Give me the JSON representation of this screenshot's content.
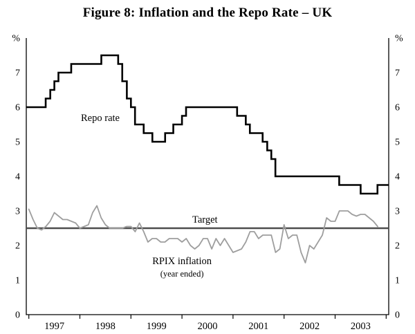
{
  "chart_data": {
    "type": "line",
    "title": "Figure 8: Inflation and the Repo Rate – UK",
    "unit_label_left": "%",
    "unit_label_right": "%",
    "ylim": [
      0,
      8
    ],
    "y_ticks": [
      0,
      1,
      2,
      3,
      4,
      5,
      6,
      7
    ],
    "xlim": [
      1996.95,
      2004.05
    ],
    "x_tick_years": [
      1997,
      1998,
      1999,
      2000,
      2001,
      2002,
      2003
    ],
    "x_boundary_ticks": [
      1997,
      1998,
      1999,
      2000,
      2001,
      2002,
      2003,
      2004
    ],
    "grid": false,
    "legend": "none",
    "series": [
      {
        "name": "Target",
        "type": "hline",
        "value": 2.5,
        "color": "#4d4d4d",
        "width": 2.4
      },
      {
        "name": "RPIX inflation (year ended)",
        "type": "line",
        "color": "#9e9e9e",
        "width": 1.8,
        "x_start": 1997.0,
        "x_step_months": 1,
        "values": [
          3.05,
          2.75,
          2.5,
          2.45,
          2.55,
          2.7,
          2.95,
          2.85,
          2.75,
          2.75,
          2.7,
          2.65,
          2.5,
          2.55,
          2.6,
          2.95,
          3.15,
          2.8,
          2.6,
          2.5,
          2.5,
          2.5,
          2.5,
          2.55,
          2.55,
          2.4,
          2.65,
          2.4,
          2.1,
          2.2,
          2.2,
          2.1,
          2.1,
          2.2,
          2.2,
          2.2,
          2.1,
          2.2,
          2.0,
          1.9,
          2.0,
          2.2,
          2.2,
          1.9,
          2.2,
          2.0,
          2.2,
          2.0,
          1.8,
          1.85,
          1.9,
          2.1,
          2.4,
          2.4,
          2.2,
          2.3,
          2.3,
          2.3,
          1.8,
          1.9,
          2.6,
          2.2,
          2.3,
          2.3,
          1.8,
          1.5,
          2.0,
          1.9,
          2.1,
          2.3,
          2.8,
          2.7,
          2.7,
          3.0,
          3.0,
          3.0,
          2.9,
          2.85,
          2.9,
          2.9,
          2.8,
          2.7,
          2.55
        ]
      },
      {
        "name": "Repo rate",
        "type": "step",
        "color": "#000000",
        "width": 2.6,
        "points": [
          [
            1996.95,
            6.0
          ],
          [
            1997.33,
            6.25
          ],
          [
            1997.42,
            6.5
          ],
          [
            1997.5,
            6.75
          ],
          [
            1997.58,
            7.0
          ],
          [
            1997.83,
            7.25
          ],
          [
            1998.42,
            7.5
          ],
          [
            1998.75,
            7.25
          ],
          [
            1998.83,
            6.75
          ],
          [
            1998.92,
            6.25
          ],
          [
            1999.0,
            6.0
          ],
          [
            1999.08,
            5.5
          ],
          [
            1999.25,
            5.25
          ],
          [
            1999.42,
            5.0
          ],
          [
            1999.67,
            5.25
          ],
          [
            1999.83,
            5.5
          ],
          [
            2000.0,
            5.75
          ],
          [
            2000.08,
            6.0
          ],
          [
            2001.08,
            5.75
          ],
          [
            2001.25,
            5.5
          ],
          [
            2001.33,
            5.25
          ],
          [
            2001.58,
            5.0
          ],
          [
            2001.67,
            4.75
          ],
          [
            2001.75,
            4.5
          ],
          [
            2001.83,
            4.0
          ],
          [
            2003.08,
            3.75
          ],
          [
            2003.5,
            3.5
          ],
          [
            2003.83,
            3.75
          ]
        ]
      }
    ],
    "annotations": [
      {
        "text": "Repo rate",
        "x": 1998.4,
        "y": 5.6,
        "size": 14.5
      },
      {
        "text": "Target",
        "x": 2000.45,
        "y": 2.66,
        "size": 14.5
      },
      {
        "text": "RPIX inflation",
        "x": 2000.0,
        "y": 1.46,
        "size": 14.5
      },
      {
        "text": "(year ended)",
        "x": 2000.0,
        "y": 1.1,
        "size": 12.5
      }
    ]
  }
}
